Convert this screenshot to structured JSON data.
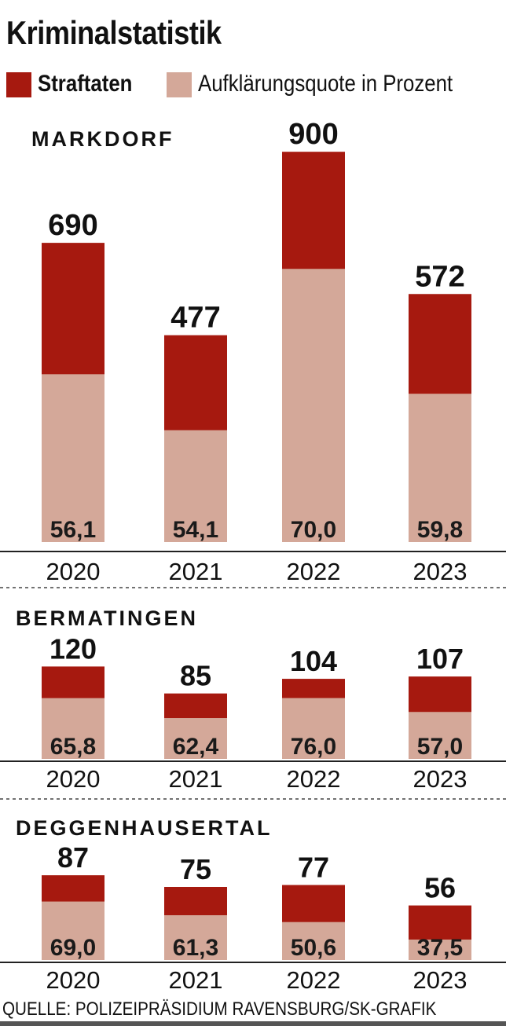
{
  "title": "Kriminalstatistik",
  "legend": [
    {
      "label": "Straftaten",
      "color": "#a6190f",
      "bold": true
    },
    {
      "label": "Aufklärungsquote in Prozent",
      "color": "#d4a899",
      "bold": false
    }
  ],
  "source": "QUELLE: POLIZEIPRÄSIDIUM RAVENSBURG/SK-GRAFIK",
  "chart_data": [
    {
      "type": "bar",
      "title": "MARKDORF",
      "categories": [
        "2020",
        "2021",
        "2022",
        "2023"
      ],
      "series": [
        {
          "name": "Straftaten",
          "values": [
            690,
            477,
            900,
            572
          ]
        },
        {
          "name": "Aufklärungsquote in Prozent",
          "values": [
            56.1,
            54.1,
            70.0,
            59.8
          ],
          "labels": [
            "56,1",
            "54,1",
            "70,0",
            "59,8"
          ]
        }
      ]
    },
    {
      "type": "bar",
      "title": "BERMATINGEN",
      "categories": [
        "2020",
        "2021",
        "2022",
        "2023"
      ],
      "series": [
        {
          "name": "Straftaten",
          "values": [
            120,
            85,
            104,
            107
          ]
        },
        {
          "name": "Aufklärungsquote in Prozent",
          "values": [
            65.8,
            62.4,
            76.0,
            57.0
          ],
          "labels": [
            "65,8",
            "62,4",
            "76,0",
            "57,0"
          ]
        }
      ]
    },
    {
      "type": "bar",
      "title": "DEGGENHAUSERTAL",
      "categories": [
        "2020",
        "2021",
        "2022",
        "2023"
      ],
      "series": [
        {
          "name": "Straftaten",
          "values": [
            87,
            75,
            77,
            56
          ]
        },
        {
          "name": "Aufklärungsquote in Prozent",
          "values": [
            69.0,
            61.3,
            50.6,
            37.5
          ],
          "labels": [
            "69,0",
            "61,3",
            "50,6",
            "37,5"
          ]
        }
      ]
    }
  ]
}
